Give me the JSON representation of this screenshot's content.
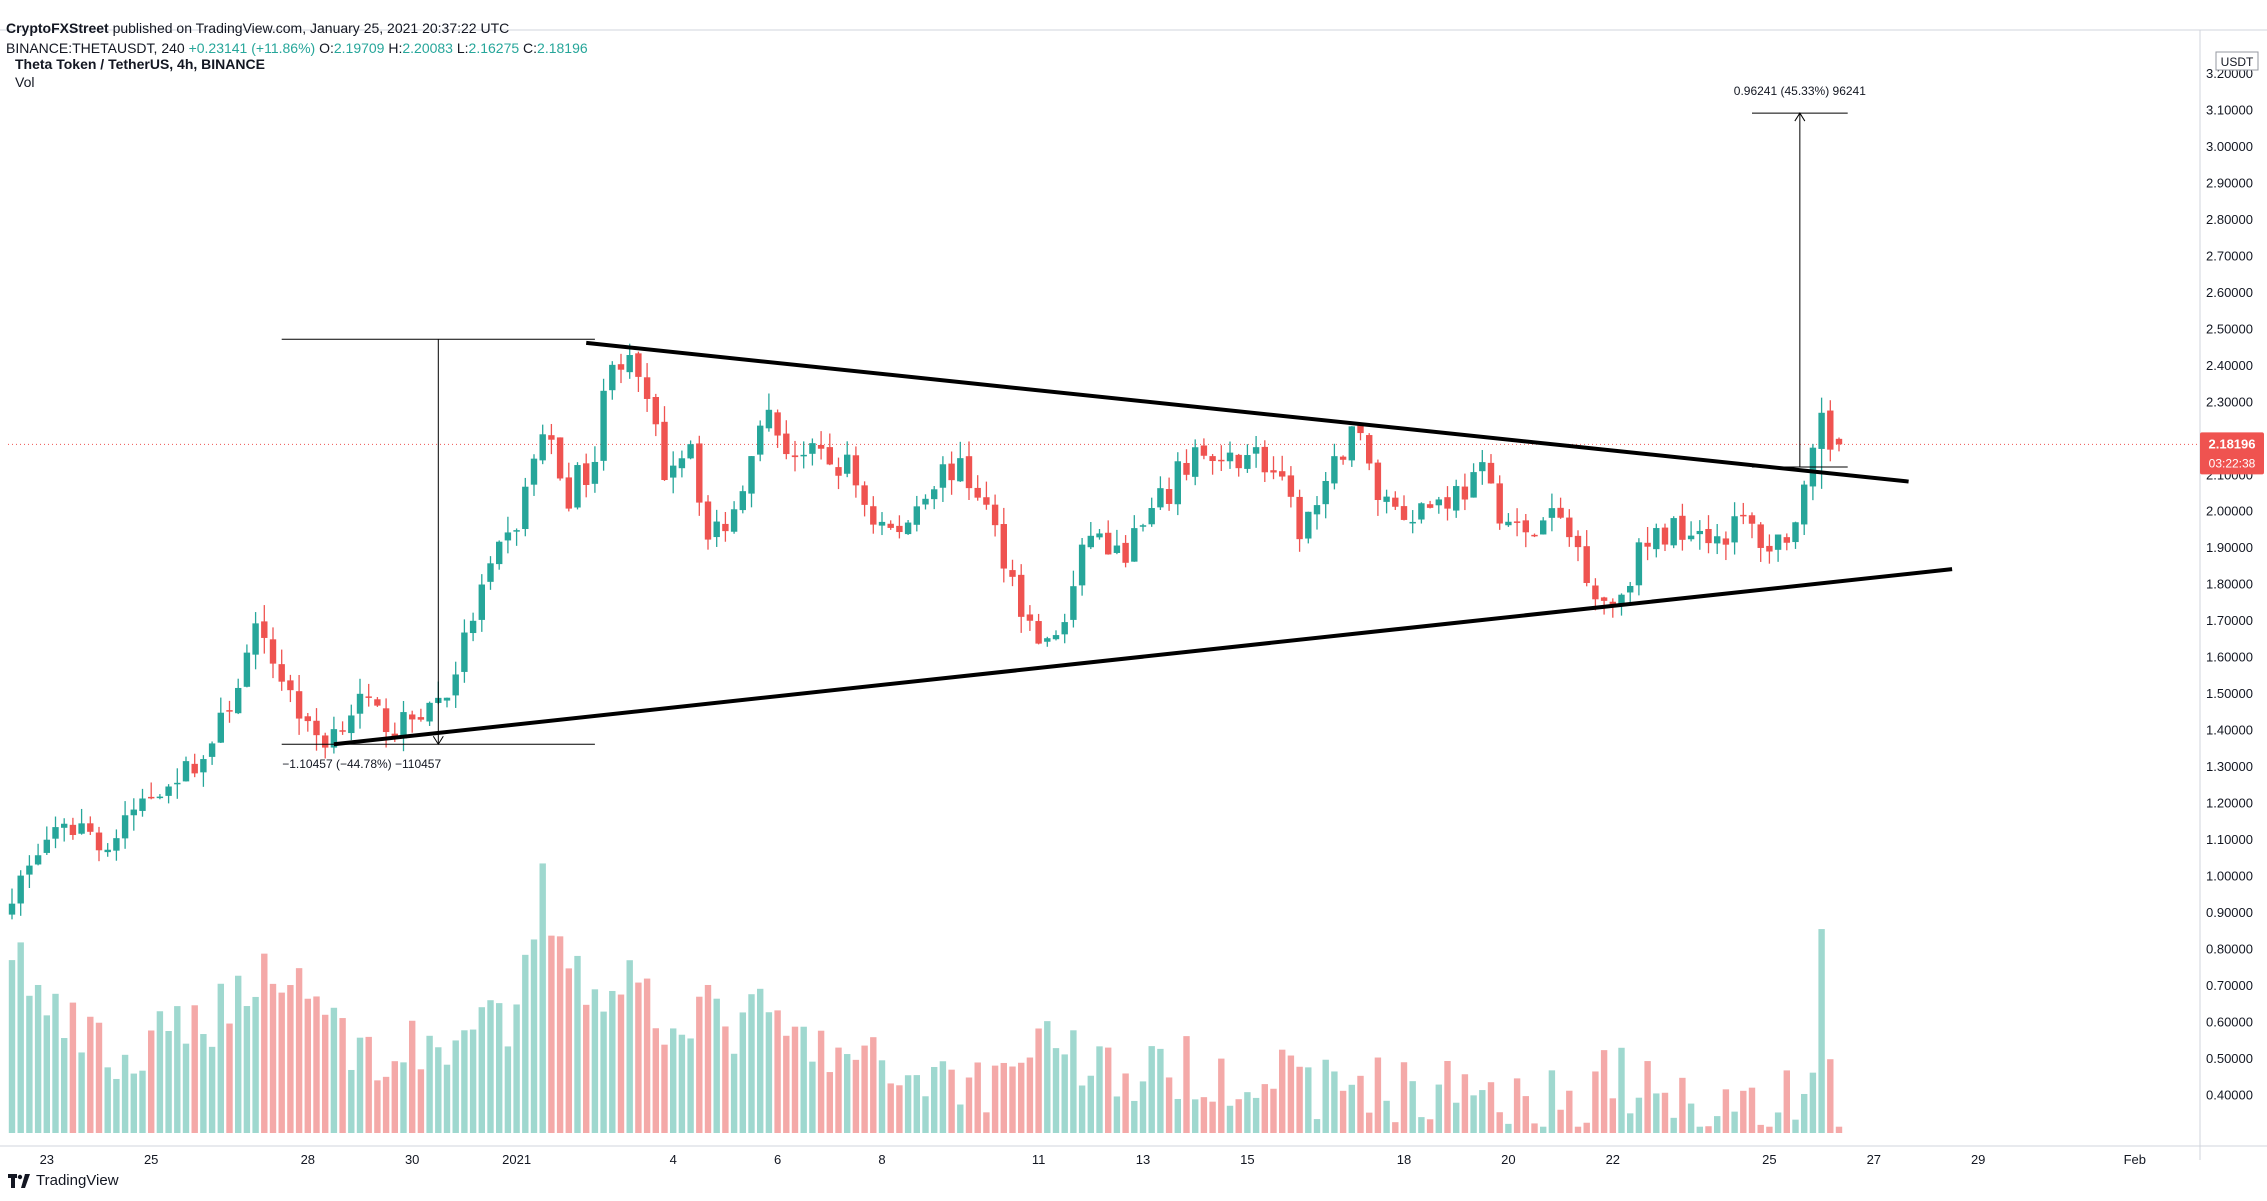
{
  "header": {
    "publisher": "CryptoFXStreet",
    "published_text": "published on TradingView.com, January 25, 2021 20:37:22 UTC",
    "symbol": "BINANCE:THETAUSDT, 240",
    "ohlc": {
      "change": "+0.23141 (+11.86%)",
      "open_label": "O:",
      "open": "2.19709",
      "high_label": "H:",
      "high": "2.20083",
      "low_label": "L:",
      "low": "2.16275",
      "close_label": "C:",
      "close": "2.18196"
    },
    "title": "Theta Token / TetherUS, 4h, BINANCE",
    "vol_label": "Vol"
  },
  "price_axis": {
    "currency": "USDT",
    "current_price": "2.18196",
    "countdown": "03:22:38",
    "colors": {
      "up": "#26a69a",
      "down": "#ef5350",
      "price_tag": "#ef5350"
    }
  },
  "annotations": {
    "upper_measure": "0.96241 (45.33%) 96241",
    "lower_measure": "−1.10457 (−44.78%) −110457"
  },
  "footer": {
    "brand": "TradingView",
    "logo_icon": "tradingview-logo-icon"
  },
  "chart_data": {
    "type": "candlestick",
    "symbol": "THETAUSDT",
    "timeframe": "4h",
    "ylim": [
      0.33,
      3.23
    ],
    "yticks": [
      "3.20000",
      "3.10000",
      "3.00000",
      "2.90000",
      "2.80000",
      "2.70000",
      "2.60000",
      "2.50000",
      "2.40000",
      "2.30000",
      "2.20000",
      "2.10000",
      "2.00000",
      "1.90000",
      "1.80000",
      "1.70000",
      "1.60000",
      "1.50000",
      "1.40000",
      "1.30000",
      "1.20000",
      "1.10000",
      "1.00000",
      "0.90000",
      "0.80000",
      "0.70000",
      "0.60000",
      "0.50000",
      "0.40000"
    ],
    "xticks": [
      {
        "label": "23",
        "i": 4
      },
      {
        "label": "25",
        "i": 16
      },
      {
        "label": "28",
        "i": 34
      },
      {
        "label": "30",
        "i": 46
      },
      {
        "label": "2021",
        "i": 58
      },
      {
        "label": "4",
        "i": 76
      },
      {
        "label": "6",
        "i": 88
      },
      {
        "label": "8",
        "i": 100
      },
      {
        "label": "11",
        "i": 118
      },
      {
        "label": "13",
        "i": 130
      },
      {
        "label": "15",
        "i": 142
      },
      {
        "label": "18",
        "i": 160
      },
      {
        "label": "20",
        "i": 172
      },
      {
        "label": "22",
        "i": 184
      },
      {
        "label": "25",
        "i": 202
      },
      {
        "label": "27",
        "i": 214
      },
      {
        "label": "29",
        "i": 226
      },
      {
        "label": "Feb",
        "i": 244
      }
    ],
    "anchors": [
      [
        0,
        0.95,
        0.78
      ],
      [
        4,
        1.1,
        0.6
      ],
      [
        8,
        1.14,
        0.55
      ],
      [
        11,
        1.07,
        0.5
      ],
      [
        14,
        1.18,
        0.48
      ],
      [
        18,
        1.26,
        0.55
      ],
      [
        22,
        1.32,
        0.6
      ],
      [
        25,
        1.47,
        0.62
      ],
      [
        28,
        1.66,
        0.72
      ],
      [
        31,
        1.55,
        0.68
      ],
      [
        34,
        1.4,
        0.7
      ],
      [
        36,
        1.37,
        0.6
      ],
      [
        40,
        1.48,
        0.52
      ],
      [
        44,
        1.4,
        0.5
      ],
      [
        47,
        1.45,
        0.52
      ],
      [
        50,
        1.5,
        0.55
      ],
      [
        54,
        1.78,
        0.56
      ],
      [
        58,
        1.97,
        0.58
      ],
      [
        61,
        2.22,
        0.9
      ],
      [
        64,
        2.05,
        0.76
      ],
      [
        67,
        2.15,
        0.65
      ],
      [
        69,
        2.45,
        0.7
      ],
      [
        72,
        2.35,
        0.68
      ],
      [
        75,
        2.12,
        0.6
      ],
      [
        78,
        2.2,
        0.62
      ],
      [
        80,
        1.92,
        0.6
      ],
      [
        83,
        2.0,
        0.58
      ],
      [
        86,
        2.28,
        0.6
      ],
      [
        89,
        2.18,
        0.56
      ],
      [
        92,
        2.14,
        0.52
      ],
      [
        96,
        2.12,
        0.5
      ],
      [
        99,
        1.98,
        0.48
      ],
      [
        102,
        1.93,
        0.46
      ],
      [
        105,
        2.07,
        0.47
      ],
      [
        108,
        2.12,
        0.46
      ],
      [
        111,
        2.06,
        0.44
      ],
      [
        114,
        1.88,
        0.46
      ],
      [
        117,
        1.68,
        0.55
      ],
      [
        119,
        1.63,
        0.57
      ],
      [
        121,
        1.7,
        0.52
      ],
      [
        124,
        1.95,
        0.5
      ],
      [
        127,
        1.87,
        0.46
      ],
      [
        130,
        1.95,
        0.46
      ],
      [
        133,
        2.05,
        0.46
      ],
      [
        136,
        2.17,
        0.48
      ],
      [
        139,
        2.1,
        0.47
      ],
      [
        142,
        2.18,
        0.46
      ],
      [
        145,
        2.1,
        0.45
      ],
      [
        148,
        1.95,
        0.44
      ],
      [
        151,
        2.04,
        0.43
      ],
      [
        154,
        2.25,
        0.45
      ],
      [
        157,
        2.05,
        0.44
      ],
      [
        160,
        2.0,
        0.42
      ],
      [
        163,
        2.02,
        0.41
      ],
      [
        166,
        2.05,
        0.43
      ],
      [
        169,
        2.09,
        0.44
      ],
      [
        172,
        1.97,
        0.42
      ],
      [
        174,
        1.92,
        0.43
      ],
      [
        177,
        1.99,
        0.4
      ],
      [
        180,
        1.9,
        0.4
      ],
      [
        182,
        1.78,
        0.45
      ],
      [
        184,
        1.74,
        0.47
      ],
      [
        187,
        1.88,
        0.43
      ],
      [
        190,
        1.94,
        0.4
      ],
      [
        193,
        1.97,
        0.4
      ],
      [
        196,
        1.93,
        0.4
      ],
      [
        199,
        1.97,
        0.4
      ],
      [
        202,
        1.9,
        0.38
      ],
      [
        205,
        1.96,
        0.4
      ],
      [
        206,
        2.03,
        0.45
      ],
      [
        207,
        2.13,
        0.48
      ],
      [
        208,
        2.22,
        0.82
      ],
      [
        209,
        2.18,
        0.47
      ],
      [
        210,
        2.18,
        0.33
      ]
    ],
    "drawings": {
      "upper_trendline": [
        [
          66,
          2.46
        ],
        [
          218,
          2.08
        ]
      ],
      "lower_trendline": [
        [
          37,
          1.36
        ],
        [
          223,
          1.84
        ]
      ],
      "measure_upper": {
        "i0": 200,
        "i1": 211,
        "base": 2.12,
        "top": 3.09
      },
      "measure_lower": {
        "i0": 31,
        "i1": 67,
        "base": 1.36,
        "top": 2.47
      }
    }
  }
}
